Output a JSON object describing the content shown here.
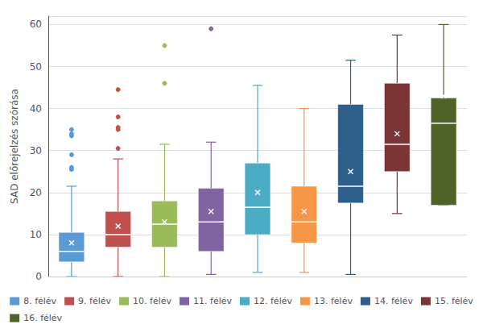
{
  "chart_data": {
    "type": "box",
    "ylabel": "SAD előrejelzés szórása",
    "ylim": [
      0,
      62
    ],
    "yticks": [
      0,
      10,
      20,
      30,
      40,
      50,
      60
    ],
    "grid": true,
    "legend": "bottom",
    "tick_labels": "y",
    "series": [
      {
        "name": "8. félév",
        "color": "#5b9bd5",
        "q1": 3.5,
        "median": 6.0,
        "q3": 10.5,
        "whisker_low": 0.0,
        "whisker_high": 21.5,
        "mean": 8.0,
        "fliers": [
          25.5,
          26.0,
          29.0,
          33.5,
          34.0,
          35.0
        ]
      },
      {
        "name": "9. félév",
        "color": "#c0504d",
        "q1": 7.0,
        "median": 10.0,
        "q3": 15.5,
        "whisker_low": 0.0,
        "whisker_high": 28.0,
        "mean": 12.0,
        "fliers": [
          30.5,
          35.0,
          35.5,
          38.0,
          44.5
        ]
      },
      {
        "name": "10. félév",
        "color": "#9bbb59",
        "q1": 7.0,
        "median": 12.5,
        "q3": 18.0,
        "whisker_low": 0.0,
        "whisker_high": 31.5,
        "mean": 13.0,
        "fliers": [
          46.0,
          55.0
        ]
      },
      {
        "name": "11. félév",
        "color": "#8064a2",
        "q1": 6.0,
        "median": 13.0,
        "q3": 21.0,
        "whisker_low": 0.5,
        "whisker_high": 32.0,
        "mean": 15.5,
        "fliers": [
          59.0
        ]
      },
      {
        "name": "12. félév",
        "color": "#4bacc6",
        "q1": 10.0,
        "median": 16.5,
        "q3": 27.0,
        "whisker_low": 1.0,
        "whisker_high": 45.5,
        "mean": 20.0,
        "fliers": []
      },
      {
        "name": "13. félév",
        "color": "#f79646",
        "q1": 8.0,
        "median": 13.0,
        "q3": 21.5,
        "whisker_low": 1.0,
        "whisker_high": 40.0,
        "mean": 15.5,
        "fliers": []
      },
      {
        "name": "14. félév",
        "color": "#2e5f8a",
        "q1": 17.5,
        "median": 21.5,
        "q3": 41.0,
        "whisker_low": 0.5,
        "whisker_high": 51.5,
        "mean": 25.0,
        "fliers": []
      },
      {
        "name": "15. félév",
        "color": "#7b3535",
        "q1": 25.0,
        "median": 31.5,
        "q3": 46.0,
        "whisker_low": 15.0,
        "whisker_high": 57.5,
        "mean": 34.0,
        "fliers": []
      },
      {
        "name": "16. félév",
        "color": "#4f6228",
        "q1": 17.0,
        "median": 36.5,
        "q3": 42.5,
        "whisker_low": 17.0,
        "whisker_high": 60.0,
        "mean": 43.0,
        "fliers": []
      }
    ]
  }
}
